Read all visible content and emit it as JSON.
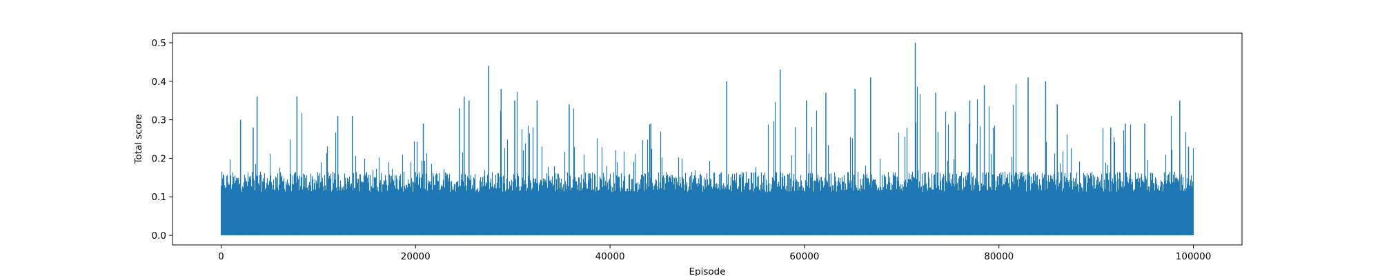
{
  "chart_data": {
    "type": "line",
    "title": "",
    "xlabel": "Episode",
    "ylabel": "Total score",
    "xlim": [
      -5000,
      105000
    ],
    "ylim": [
      -0.025,
      0.525
    ],
    "x_ticks": [
      0,
      20000,
      40000,
      60000,
      80000,
      100000
    ],
    "x_tick_labels": [
      "0",
      "20000",
      "40000",
      "60000",
      "80000",
      "100000"
    ],
    "y_ticks": [
      0.0,
      0.1,
      0.2,
      0.3,
      0.4,
      0.5
    ],
    "y_tick_labels": [
      "0.0",
      "0.1",
      "0.2",
      "0.3",
      "0.4",
      "0.5"
    ],
    "grid": false,
    "legend": "none",
    "series_color": "#1f77b4",
    "series": [
      {
        "x_start": 0,
        "x_end": 100000,
        "baseline": 0.0,
        "typical_max": 0.15,
        "envelope_x": [
          0,
          2000,
          4000,
          6000,
          8000,
          10000,
          12000,
          14000,
          16000,
          18000,
          20000,
          22000,
          24000,
          26000,
          28000,
          30000,
          32000,
          34000,
          36000,
          38000,
          40000,
          42000,
          44000,
          46000,
          48000,
          50000,
          52000,
          54000,
          56000,
          58000,
          60000,
          62000,
          64000,
          66000,
          68000,
          70000,
          72000,
          74000,
          76000,
          78000,
          80000,
          82000,
          84000,
          86000,
          88000,
          90000,
          92000,
          94000,
          96000,
          98000,
          100000
        ],
        "envelope_y": [
          0.22,
          0.31,
          0.29,
          0.25,
          0.36,
          0.22,
          0.31,
          0.31,
          0.22,
          0.18,
          0.3,
          0.18,
          0.19,
          0.37,
          0.44,
          0.38,
          0.36,
          0.27,
          0.34,
          0.3,
          0.26,
          0.22,
          0.29,
          0.27,
          0.17,
          0.18,
          0.4,
          0.29,
          0.43,
          0.29,
          0.35,
          0.37,
          0.25,
          0.38,
          0.41,
          0.28,
          0.5,
          0.37,
          0.35,
          0.39,
          0.3,
          0.41,
          0.41,
          0.3,
          0.26,
          0.29,
          0.29,
          0.3,
          0.24,
          0.35,
          0.23
        ],
        "peaks_x": [
          2000,
          3300,
          3700,
          7800,
          12000,
          13500,
          20800,
          24500,
          25000,
          25500,
          27500,
          28800,
          30200,
          32500,
          35800,
          44200,
          52000,
          57500,
          60200,
          62200,
          65200,
          66800,
          71400,
          73500,
          75500,
          77000,
          78500,
          83000,
          84800,
          86000,
          91500,
          93000,
          95000,
          98600,
          99500
        ],
        "peaks_y": [
          0.3,
          0.28,
          0.36,
          0.36,
          0.31,
          0.31,
          0.29,
          0.33,
          0.36,
          0.35,
          0.44,
          0.38,
          0.35,
          0.35,
          0.34,
          0.29,
          0.4,
          0.43,
          0.35,
          0.37,
          0.38,
          0.41,
          0.5,
          0.37,
          0.32,
          0.35,
          0.39,
          0.41,
          0.4,
          0.34,
          0.28,
          0.29,
          0.29,
          0.35,
          0.23
        ]
      }
    ]
  }
}
